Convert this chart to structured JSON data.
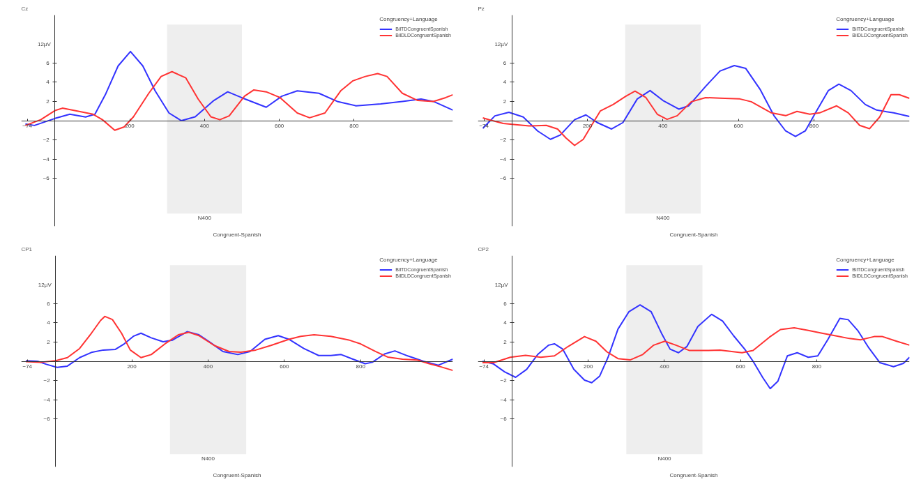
{
  "chart_data": [
    {
      "type": "line",
      "title": "Cz",
      "xlabel": "Congruent-Spanish",
      "ylabel": "12µV",
      "legend_title": "Congruency+Language",
      "legend": "top right",
      "grid": false,
      "xlim": [
        -90,
        1064
      ],
      "ylim": [
        -11,
        11
      ],
      "xticks": [
        -74,
        200,
        400,
        600,
        800
      ],
      "yticks": [
        6,
        4,
        2,
        -2,
        -4,
        -6
      ],
      "bands": [
        {
          "axis": "x",
          "from": 300,
          "to": 500,
          "label": "N400",
          "color": "#eeeeee"
        }
      ],
      "series": [
        {
          "name": "BilTDCongruentSpanish",
          "color": "#3333ff",
          "x": [
            -79,
            -55,
            0,
            40,
            82,
            107,
            136,
            169,
            202,
            235,
            268,
            305,
            338,
            375,
            425,
            462,
            499,
            565,
            607,
            648,
            706,
            755,
            805,
            871,
            929,
            979,
            1012,
            1064
          ],
          "values": [
            -0.35,
            -0.5,
            0.23,
            0.67,
            0.38,
            0.67,
            2.8,
            5.7,
            7.2,
            5.7,
            3.1,
            0.8,
            0,
            0.4,
            2.1,
            3.0,
            2.4,
            1.4,
            2.55,
            3.1,
            2.85,
            2.0,
            1.55,
            1.75,
            2.0,
            2.25,
            2.0,
            1.1
          ]
        },
        {
          "name": "BilDLDCongruentSpanish",
          "color": "#ff3333",
          "x": [
            -79,
            -38,
            0,
            20,
            53,
            102,
            127,
            160,
            185,
            210,
            251,
            284,
            313,
            350,
            383,
            417,
            441,
            466,
            507,
            532,
            565,
            602,
            648,
            681,
            722,
            764,
            797,
            830,
            863,
            888,
            929,
            970,
            1012,
            1045,
            1064
          ],
          "values": [
            -0.5,
            0.1,
            1.05,
            1.3,
            1.05,
            0.67,
            0.1,
            -1.0,
            -0.65,
            0.4,
            2.85,
            4.6,
            5.1,
            4.45,
            2.25,
            0.4,
            0.1,
            0.5,
            2.55,
            3.2,
            3.0,
            2.4,
            0.8,
            0.3,
            0.8,
            3.1,
            4.15,
            4.6,
            4.9,
            4.6,
            2.85,
            2.1,
            2.0,
            2.4,
            2.7
          ]
        }
      ]
    },
    {
      "type": "line",
      "title": "Pz",
      "xlabel": "Congruent-Spanish",
      "ylabel": "12µV",
      "legend_title": "Congruency+Language",
      "legend": "top right",
      "grid": false,
      "xlim": [
        -90,
        1053
      ],
      "ylim": [
        -11,
        11
      ],
      "xticks": [
        -74,
        200,
        400,
        600,
        800
      ],
      "yticks": [
        6,
        4,
        2,
        -2,
        -4,
        -6
      ],
      "bands": [
        {
          "axis": "x",
          "from": 300,
          "to": 500,
          "label": "N400",
          "color": "#eeeeee"
        }
      ],
      "series": [
        {
          "name": "BilTDCongruentSpanish",
          "color": "#3333ff",
          "x": [
            -77,
            -45,
            -8,
            30,
            68,
            102,
            128,
            166,
            196,
            226,
            264,
            294,
            332,
            366,
            400,
            442,
            468,
            513,
            551,
            589,
            619,
            657,
            694,
            725,
            751,
            777,
            804,
            838,
            866,
            898,
            936,
            966,
            1011,
            1053
          ],
          "values": [
            -0.8,
            0.5,
            0.87,
            0.38,
            -1.07,
            -1.94,
            -1.5,
            0.1,
            0.6,
            -0.2,
            -0.87,
            -0.2,
            2.26,
            3.13,
            2.1,
            1.2,
            1.54,
            3.57,
            5.16,
            5.74,
            5.45,
            3.28,
            0.52,
            -1.07,
            -1.65,
            -1.07,
            0.81,
            3.13,
            3.8,
            3.13,
            1.68,
            1.1,
            0.81,
            0.43
          ]
        },
        {
          "name": "BilDLDCongruentSpanish",
          "color": "#ff3333",
          "x": [
            -77,
            -60,
            -23,
            15,
            45,
            91,
            121,
            143,
            166,
            189,
            211,
            234,
            268,
            302,
            326,
            355,
            385,
            411,
            438,
            475,
            513,
            551,
            604,
            634,
            687,
            725,
            755,
            789,
            815,
            860,
            891,
            921,
            947,
            974,
            1004,
            1026,
            1053
          ],
          "values": [
            0.29,
            0.09,
            -0.29,
            -0.43,
            -0.55,
            -0.49,
            -0.87,
            -1.8,
            -2.58,
            -1.94,
            -0.49,
            1.0,
            1.68,
            2.55,
            3.07,
            2.4,
            0.67,
            0.14,
            0.52,
            1.97,
            2.4,
            2.35,
            2.26,
            1.97,
            0.81,
            0.52,
            0.96,
            0.67,
            0.81,
            1.54,
            0.81,
            -0.49,
            -0.84,
            0.38,
            2.7,
            2.7,
            2.32
          ]
        }
      ]
    },
    {
      "type": "line",
      "title": "CP1",
      "xlabel": "Congruent-Spanish",
      "ylabel": "12µV",
      "legend_title": "Congruency+Language",
      "legend": "top right",
      "grid": false,
      "xlim": [
        -90,
        1042
      ],
      "ylim": [
        -11,
        11
      ],
      "xticks": [
        -74,
        200,
        400,
        600,
        800
      ],
      "yticks": [
        6,
        4,
        2,
        -2,
        -4,
        -6
      ],
      "bands": [
        {
          "axis": "x",
          "from": 300,
          "to": 500,
          "label": "N400",
          "color": "#eeeeee"
        }
      ],
      "series": [
        {
          "name": "BilTDCongruentSpanish",
          "color": "#3333ff",
          "x": [
            -78,
            -47,
            -24,
            4,
            31,
            63,
            94,
            125,
            157,
            180,
            204,
            224,
            251,
            282,
            306,
            345,
            376,
            408,
            439,
            478,
            510,
            549,
            584,
            612,
            651,
            690,
            722,
            749,
            780,
            812,
            831,
            863,
            890,
            925,
            965,
            1004,
            1042
          ],
          "values": [
            0.06,
            0,
            -0.32,
            -0.63,
            -0.5,
            0.38,
            0.92,
            1.17,
            1.24,
            1.81,
            2.6,
            2.92,
            2.44,
            2.03,
            2.19,
            3.08,
            2.76,
            1.9,
            1.02,
            0.7,
            1.02,
            2.29,
            2.67,
            2.29,
            1.33,
            0.6,
            0.6,
            0.7,
            0.22,
            -0.25,
            -0.1,
            0.76,
            1.08,
            0.54,
            0,
            -0.41,
            0.22
          ]
        },
        {
          "name": "BilDLDCongruentSpanish",
          "color": "#ff3333",
          "x": [
            -78,
            -39,
            0,
            31,
            63,
            94,
            118,
            129,
            149,
            173,
            196,
            224,
            251,
            290,
            322,
            349,
            376,
            416,
            455,
            486,
            525,
            565,
            612,
            643,
            678,
            722,
            769,
            800,
            839,
            871,
            910,
            949,
            980,
            1010,
            1042
          ],
          "values": [
            -0.03,
            -0.1,
            0.06,
            0.38,
            1.33,
            2.92,
            4.25,
            4.67,
            4.35,
            2.92,
            1.17,
            0.38,
            0.7,
            1.9,
            2.76,
            3.02,
            2.67,
            1.65,
            1.02,
            0.95,
            1.17,
            1.65,
            2.29,
            2.6,
            2.76,
            2.6,
            2.22,
            1.81,
            1.02,
            0.44,
            0.22,
            0.13,
            -0.25,
            -0.57,
            -0.95
          ]
        }
      ]
    },
    {
      "type": "line",
      "title": "CP2",
      "xlabel": "Congruent-Spanish",
      "ylabel": "12µV",
      "legend_title": "Congruency+Language",
      "legend": "top right",
      "grid": false,
      "xlim": [
        -90,
        1044
      ],
      "ylim": [
        -11,
        11
      ],
      "xticks": [
        -74,
        200,
        400,
        600,
        800
      ],
      "yticks": [
        6,
        4,
        2,
        -2,
        -4,
        -6
      ],
      "bands": [
        {
          "axis": "x",
          "from": 300,
          "to": 500,
          "label": "N400",
          "color": "#eeeeee"
        }
      ],
      "series": [
        {
          "name": "BilTDCongruentSpanish",
          "color": "#3333ff",
          "x": [
            -78,
            -49,
            -20,
            9,
            38,
            67,
            96,
            111,
            133,
            162,
            190,
            209,
            230,
            252,
            278,
            307,
            336,
            365,
            394,
            415,
            437,
            459,
            488,
            524,
            553,
            582,
            611,
            633,
            658,
            678,
            698,
            723,
            749,
            778,
            803,
            829,
            861,
            883,
            908,
            937,
            966,
            1002,
            1028,
            1044
          ],
          "values": [
            0,
            -0.28,
            -1.1,
            -1.67,
            -0.84,
            0.7,
            1.68,
            1.82,
            1.26,
            -0.84,
            -1.96,
            -2.23,
            -1.54,
            0.42,
            3.35,
            5.17,
            5.87,
            5.17,
            2.79,
            1.26,
            0.89,
            1.53,
            3.63,
            4.89,
            4.19,
            2.65,
            1.26,
            0,
            -1.67,
            -2.85,
            -2.09,
            0.56,
            0.89,
            0.42,
            0.56,
            2.23,
            4.47,
            4.33,
            3.21,
            1.4,
            -0.14,
            -0.56,
            -0.22,
            0.42
          ]
        },
        {
          "name": "BilDLDCongruentSpanish",
          "color": "#ff3333",
          "x": [
            -78,
            -49,
            -5,
            35,
            75,
            111,
            147,
            190,
            220,
            249,
            278,
            310,
            343,
            372,
            401,
            430,
            466,
            509,
            546,
            604,
            633,
            676,
            705,
            741,
            778,
            814,
            850,
            886,
            915,
            951,
            973,
            1010,
            1044
          ],
          "values": [
            -0.14,
            -0.14,
            0.42,
            0.61,
            0.42,
            0.56,
            1.54,
            2.57,
            2.09,
            0.98,
            0.28,
            0.14,
            0.7,
            1.68,
            2.09,
            1.68,
            1.12,
            1.12,
            1.17,
            0.89,
            1.12,
            2.51,
            3.3,
            3.49,
            3.21,
            2.93,
            2.65,
            2.37,
            2.23,
            2.57,
            2.57,
            2.09,
            1.68
          ]
        }
      ]
    }
  ]
}
